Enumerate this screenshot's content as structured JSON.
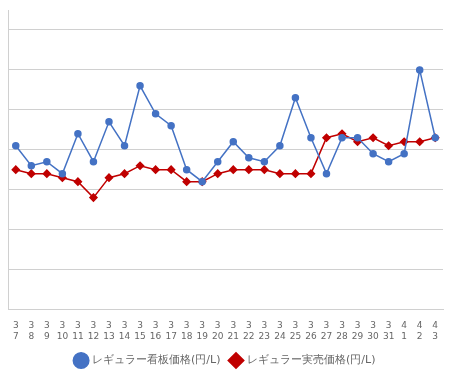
{
  "chart_data": {
    "type": "line",
    "categories": [
      "3\n7",
      "3\n8",
      "3\n9",
      "3\n10",
      "3\n11",
      "3\n12",
      "3\n13",
      "3\n14",
      "3\n15",
      "3\n16",
      "3\n17",
      "3\n18",
      "3\n19",
      "3\n20",
      "3\n21",
      "3\n22",
      "3\n23",
      "3\n24",
      "3\n25",
      "3\n26",
      "3\n27",
      "3\n28",
      "3\n29",
      "3\n30",
      "3\n31",
      "4\n1",
      "4\n2",
      "4\n3"
    ],
    "series": [
      {
        "name": "レギュラー看板価格(円/L)",
        "color": "#4472c4",
        "marker": "circle",
        "values": [
          161,
          156,
          157,
          154,
          164,
          157,
          167,
          161,
          176,
          169,
          166,
          155,
          152,
          157,
          162,
          158,
          157,
          161,
          173,
          163,
          154,
          163,
          163,
          159,
          157,
          159,
          180,
          163
        ]
      },
      {
        "name": "レギュラー実売価格(円/L)",
        "color": "#c00000",
        "marker": "diamond",
        "values": [
          155,
          154,
          154,
          153,
          152,
          148,
          153,
          154,
          156,
          155,
          155,
          152,
          152,
          154,
          155,
          155,
          155,
          154,
          154,
          154,
          163,
          164,
          162,
          163,
          161,
          162,
          162,
          163
        ]
      }
    ],
    "ylim": [
      120,
      195
    ],
    "yticks": [
      120,
      130,
      140,
      150,
      160,
      170,
      180,
      190
    ],
    "grid": true,
    "legend": "bottom",
    "tick_labels": "x"
  }
}
